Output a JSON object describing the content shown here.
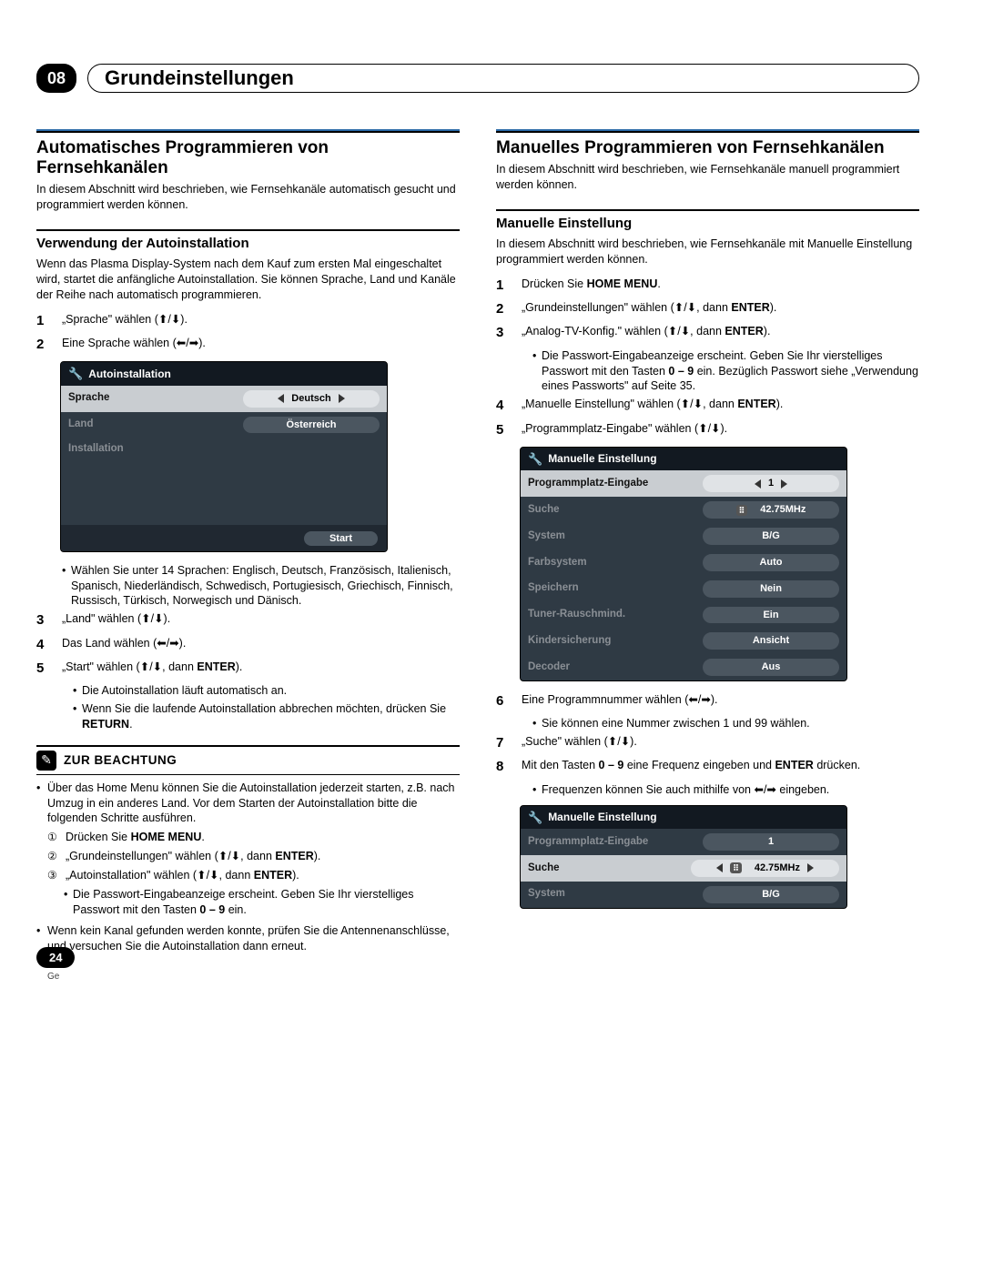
{
  "chapter": {
    "number": "08",
    "title": "Grundeinstellungen"
  },
  "page_number": "24",
  "footer_lang": "Ge",
  "glyphs": {
    "up": "↑",
    "down": "↓",
    "left": "←",
    "right": "→",
    "ud": "(⬆/⬇)",
    "lr": "(⬅/➡)"
  },
  "left": {
    "h2": "Automatisches Programmieren von Fernsehkanälen",
    "intro": "In diesem Abschnitt wird beschrieben, wie Fernsehkanäle automatisch gesucht und programmiert werden können.",
    "h3": "Verwendung der Autoinstallation",
    "p3": "Wenn das Plasma Display-System nach dem Kauf zum ersten Mal eingeschaltet wird, startet die anfängliche Autoinstallation. Sie können Sprache, Land und Kanäle der Reihe nach automatisch programmieren.",
    "steps12": [
      "„Sprache\" wählen (⬆/⬇).",
      "Eine Sprache wählen (⬅/➡)."
    ],
    "osd1": {
      "title": "Autoinstallation",
      "rows": [
        {
          "label": "Sprache",
          "value": "Deutsch",
          "sel": true,
          "arrows": true
        },
        {
          "label": "Land",
          "value": "Österreich"
        },
        {
          "label": "Installation",
          "value": ""
        }
      ],
      "start": "Start"
    },
    "lang_note": "Wählen Sie unter 14 Sprachen: Englisch, Deutsch, Französisch, Italienisch, Spanisch, Niederländisch, Schwedisch, Portugiesisch, Griechisch, Finnisch, Russisch, Türkisch, Norwegisch und Dänisch.",
    "steps345": [
      {
        "n": "3",
        "t": "„Land\" wählen (⬆/⬇)."
      },
      {
        "n": "4",
        "t": "Das Land wählen (⬅/➡)."
      },
      {
        "n": "5",
        "t": "„Start\" wählen (⬆/⬇, dann <b>ENTER</b>)."
      }
    ],
    "step5_bullets": [
      "Die Autoinstallation läuft automatisch an.",
      "Wenn Sie die laufende Autoinstallation abbrechen möchten, drücken Sie <b>RETURN</b>."
    ],
    "note_title": "ZUR BEACHTUNG",
    "note1": "Über das Home Menu können Sie die Autoinstallation jederzeit starten, z.B. nach Umzug in ein anderes Land. Vor dem Starten der Autoinstallation bitte die folgenden Schritte ausführen.",
    "circled": [
      "Drücken Sie <b>HOME MENU</b>.",
      "„Grundeinstellungen\" wählen (⬆/⬇, dann <b>ENTER</b>).",
      "„Autoinstallation\" wählen (⬆/⬇, dann <b>ENTER</b>)."
    ],
    "pw_bullet": "Die Passwort-Eingabeanzeige erscheint. Geben Sie Ihr vierstelliges Passwort mit den Tasten <b>0 – 9</b> ein.",
    "note2": "Wenn kein Kanal gefunden werden konnte, prüfen Sie die Antennenanschlüsse, und versuchen Sie die Autoinstallation dann erneut."
  },
  "right": {
    "h2": "Manuelles Programmieren von Fernsehkanälen",
    "intro": "In diesem Abschnitt wird beschrieben, wie Fernsehkanäle manuell programmiert werden können.",
    "h3": "Manuelle Einstellung",
    "p3": "In diesem Abschnitt wird beschrieben, wie Fernsehkanäle mit Manuelle Einstellung programmiert werden können.",
    "steps1_5": [
      {
        "n": "1",
        "t": "Drücken Sie <b>HOME MENU</b>."
      },
      {
        "n": "2",
        "t": "„Grundeinstellungen\" wählen (⬆/⬇, dann <b>ENTER</b>)."
      },
      {
        "n": "3",
        "t": "„Analog-TV-Konfig.\" wählen (⬆/⬇, dann <b>ENTER</b>)."
      }
    ],
    "step3_bullet": "Die Passwort-Eingabeanzeige erscheint. Geben Sie Ihr vierstelliges Passwort mit den Tasten <b>0 – 9</b> ein. Bezüglich Passwort siehe „Verwendung eines Passworts\" auf Seite 35.",
    "steps4_5": [
      {
        "n": "4",
        "t": "„Manuelle Einstellung\" wählen (⬆/⬇, dann <b>ENTER</b>)."
      },
      {
        "n": "5",
        "t": "„Programmplatz-Eingabe\" wählen (⬆/⬇)."
      }
    ],
    "osd2": {
      "title": "Manuelle Einstellung",
      "rows": [
        {
          "label": "Programmplatz-Eingabe",
          "value": "1",
          "sel": true,
          "arrows": true
        },
        {
          "label": "Suche",
          "value": "42.75MHz",
          "badge": true
        },
        {
          "label": "System",
          "value": "B/G"
        },
        {
          "label": "Farbsystem",
          "value": "Auto"
        },
        {
          "label": "Speichern",
          "value": "Nein"
        },
        {
          "label": "Tuner-Rauschmind.",
          "value": "Ein"
        },
        {
          "label": "Kindersicherung",
          "value": "Ansicht"
        },
        {
          "label": "Decoder",
          "value": "Aus"
        }
      ]
    },
    "steps6_8": [
      {
        "n": "6",
        "t": "Eine Programmnummer wählen (⬅/➡)."
      }
    ],
    "step6_bullet": "Sie können eine Nummer zwischen 1 und 99 wählen.",
    "steps7_8": [
      {
        "n": "7",
        "t": "„Suche\" wählen (⬆/⬇)."
      },
      {
        "n": "8",
        "t": "Mit den Tasten <b>0 – 9</b> eine Frequenz eingeben und <b>ENTER</b> drücken."
      }
    ],
    "step8_bullet": "Frequenzen können Sie auch mithilfe von ⬅/➡ eingeben.",
    "osd3": {
      "title": "Manuelle Einstellung",
      "rows": [
        {
          "label": "Programmplatz-Eingabe",
          "value": "1"
        },
        {
          "label": "Suche",
          "value": "42.75MHz",
          "sel": true,
          "arrows": true,
          "badge": true
        },
        {
          "label": "System",
          "value": "B/G"
        }
      ]
    }
  }
}
